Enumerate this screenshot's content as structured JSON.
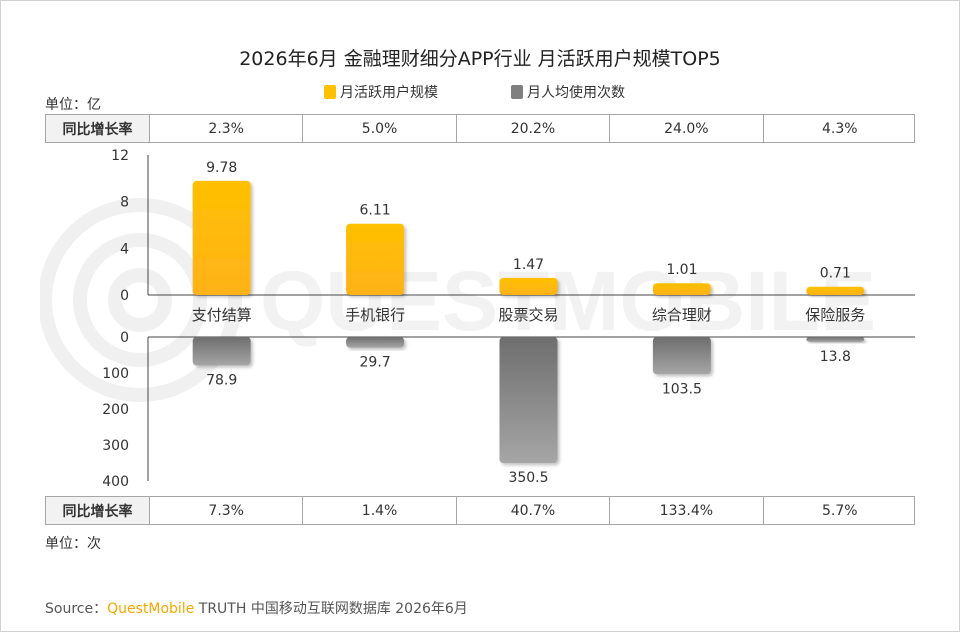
{
  "title": "2026年6月 金融理财细分APP行业 月活跃用户规模TOP5",
  "legend": [
    {
      "label": "月活跃用户规模",
      "color": "#ffc000"
    },
    {
      "label": "月人均使用次数",
      "color": "#7f7f7f"
    }
  ],
  "top_unit": "单位：亿",
  "bottom_unit": "单位：次",
  "growth_header": "同比增长率",
  "top_growth": [
    "2.3%",
    "5.0%",
    "20.2%",
    "24.0%",
    "4.3%"
  ],
  "bottom_growth": [
    "7.3%",
    "1.4%",
    "40.7%",
    "133.4%",
    "5.7%"
  ],
  "source": {
    "prefix": "Source：",
    "brand": "QuestMobile",
    "rest": " TRUTH 中国移动互联网数据库 2026年6月"
  },
  "watermark_text": "QUESTMOBILE",
  "chart_data": {
    "type": "bar",
    "categories": [
      "支付结算",
      "手机银行",
      "股票交易",
      "综合理财",
      "保险服务"
    ],
    "series": [
      {
        "name": "月活跃用户规模",
        "values": [
          9.78,
          6.11,
          1.47,
          1.01,
          0.71
        ],
        "labels": [
          "9.78",
          "6.11",
          "1.47",
          "1.01",
          "0.71"
        ],
        "color": "#ffc000",
        "axis": "top",
        "ylim": [
          0,
          12
        ],
        "ticks": [
          0,
          4,
          8,
          12
        ]
      },
      {
        "name": "月人均使用次数",
        "values": [
          78.9,
          29.7,
          350.5,
          103.5,
          13.8
        ],
        "labels": [
          "78.9",
          "29.7",
          "350.5",
          "103.5",
          "13.8"
        ],
        "color": "#7f7f7f",
        "axis": "bottom",
        "ylim": [
          0,
          400
        ],
        "ticks": [
          0,
          100,
          200,
          300,
          400
        ]
      }
    ]
  }
}
